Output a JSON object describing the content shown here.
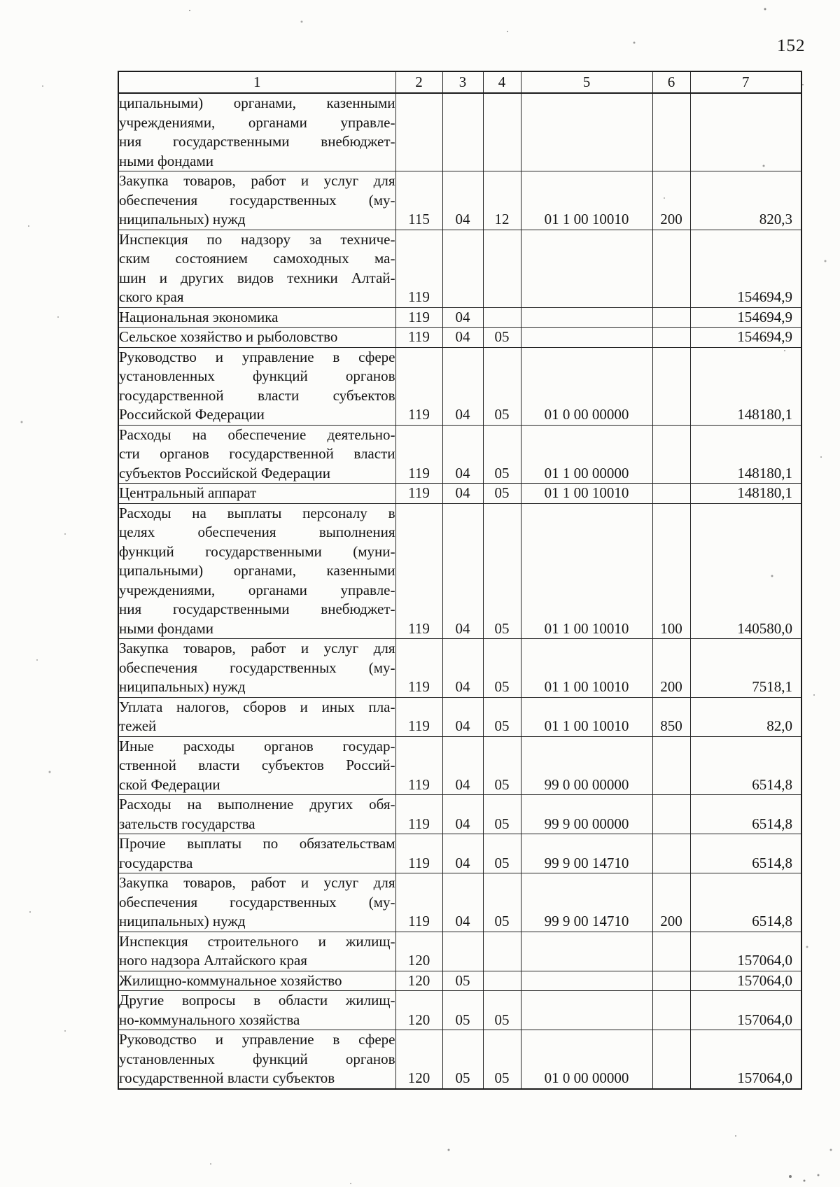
{
  "page": {
    "number": "152"
  },
  "table": {
    "header": [
      "1",
      "2",
      "3",
      "4",
      "5",
      "6",
      "7"
    ],
    "rows": [
      {
        "lines": [
          "ципальными) органами, казенными",
          "учреждениями, органами управле-",
          "ния государственными внебюджет-",
          "ными фондами"
        ],
        "c2": "",
        "c3": "",
        "c4": "",
        "c5": "",
        "c6": "",
        "c7": ""
      },
      {
        "lines": [
          "Закупка товаров, работ и услуг для",
          "обеспечения государственных (му-",
          "ниципальных) нужд"
        ],
        "c2": "115",
        "c3": "04",
        "c4": "12",
        "c5": "01 1 00 10010",
        "c6": "200",
        "c7": "820,3"
      },
      {
        "lines": [
          "Инспекция по надзору за техниче-",
          "ским состоянием самоходных ма-",
          "шин и других видов техники Алтай-",
          "ского края"
        ],
        "c2": "119",
        "c3": "",
        "c4": "",
        "c5": "",
        "c6": "",
        "c7": "154694,9"
      },
      {
        "lines": [
          "Национальная экономика"
        ],
        "c2": "119",
        "c3": "04",
        "c4": "",
        "c5": "",
        "c6": "",
        "c7": "154694,9"
      },
      {
        "lines": [
          "Сельское хозяйство и рыболовство"
        ],
        "c2": "119",
        "c3": "04",
        "c4": "05",
        "c5": "",
        "c6": "",
        "c7": "154694,9"
      },
      {
        "lines": [
          "Руководство и управление в сфере",
          "установленных функций органов",
          "государственной власти субъектов",
          "Российской Федерации"
        ],
        "c2": "119",
        "c3": "04",
        "c4": "05",
        "c5": "01 0 00 00000",
        "c6": "",
        "c7": "148180,1"
      },
      {
        "lines": [
          "Расходы на обеспечение деятельно-",
          "сти органов государственной власти",
          "субъектов Российской Федерации"
        ],
        "c2": "119",
        "c3": "04",
        "c4": "05",
        "c5": "01 1 00 00000",
        "c6": "",
        "c7": "148180,1"
      },
      {
        "lines": [
          "Центральный аппарат"
        ],
        "c2": "119",
        "c3": "04",
        "c4": "05",
        "c5": "01 1 00 10010",
        "c6": "",
        "c7": "148180,1"
      },
      {
        "lines": [
          "Расходы на выплаты персоналу в",
          "целях обеспечения выполнения",
          "функций государственными (муни-",
          "ципальными) органами, казенными",
          "учреждениями, органами управле-",
          "ния государственными внебюджет-",
          "ными фондами"
        ],
        "c2": "119",
        "c3": "04",
        "c4": "05",
        "c5": "01 1 00 10010",
        "c6": "100",
        "c7": "140580,0"
      },
      {
        "lines": [
          "Закупка товаров, работ и услуг для",
          "обеспечения государственных (му-",
          "ниципальных) нужд"
        ],
        "c2": "119",
        "c3": "04",
        "c4": "05",
        "c5": "01 1 00 10010",
        "c6": "200",
        "c7": "7518,1"
      },
      {
        "lines": [
          "Уплата налогов, сборов и иных пла-",
          "тежей"
        ],
        "c2": "119",
        "c3": "04",
        "c4": "05",
        "c5": "01 1 00 10010",
        "c6": "850",
        "c7": "82,0"
      },
      {
        "lines": [
          "Иные расходы органов государ-",
          "ственной власти субъектов Россий-",
          "ской Федерации"
        ],
        "c2": "119",
        "c3": "04",
        "c4": "05",
        "c5": "99 0 00 00000",
        "c6": "",
        "c7": "6514,8"
      },
      {
        "lines": [
          "Расходы на выполнение других обя-",
          "зательств государства"
        ],
        "c2": "119",
        "c3": "04",
        "c4": "05",
        "c5": "99 9 00 00000",
        "c6": "",
        "c7": "6514,8"
      },
      {
        "lines": [
          "Прочие выплаты по обязательствам",
          "государства"
        ],
        "c2": "119",
        "c3": "04",
        "c4": "05",
        "c5": "99 9 00 14710",
        "c6": "",
        "c7": "6514,8"
      },
      {
        "lines": [
          "Закупка товаров, работ и услуг для",
          "обеспечения государственных (му-",
          "ниципальных) нужд"
        ],
        "c2": "119",
        "c3": "04",
        "c4": "05",
        "c5": "99 9 00 14710",
        "c6": "200",
        "c7": "6514,8"
      },
      {
        "lines": [
          "Инспекция строительного и жилищ-",
          "ного надзора Алтайского края"
        ],
        "c2": "120",
        "c3": "",
        "c4": "",
        "c5": "",
        "c6": "",
        "c7": "157064,0"
      },
      {
        "lines": [
          "Жилищно-коммунальное хозяйство"
        ],
        "c2": "120",
        "c3": "05",
        "c4": "",
        "c5": "",
        "c6": "",
        "c7": "157064,0"
      },
      {
        "lines": [
          "Другие вопросы в области жилищ-",
          "но-коммунального хозяйства"
        ],
        "c2": "120",
        "c3": "05",
        "c4": "05",
        "c5": "",
        "c6": "",
        "c7": "157064,0"
      },
      {
        "lines": [
          "Руководство и управление в сфере",
          "установленных функций органов",
          "государственной власти субъектов"
        ],
        "c2": "120",
        "c3": "05",
        "c4": "05",
        "c5": "01 0 00 00000",
        "c6": "",
        "c7": "157064,0"
      }
    ]
  }
}
